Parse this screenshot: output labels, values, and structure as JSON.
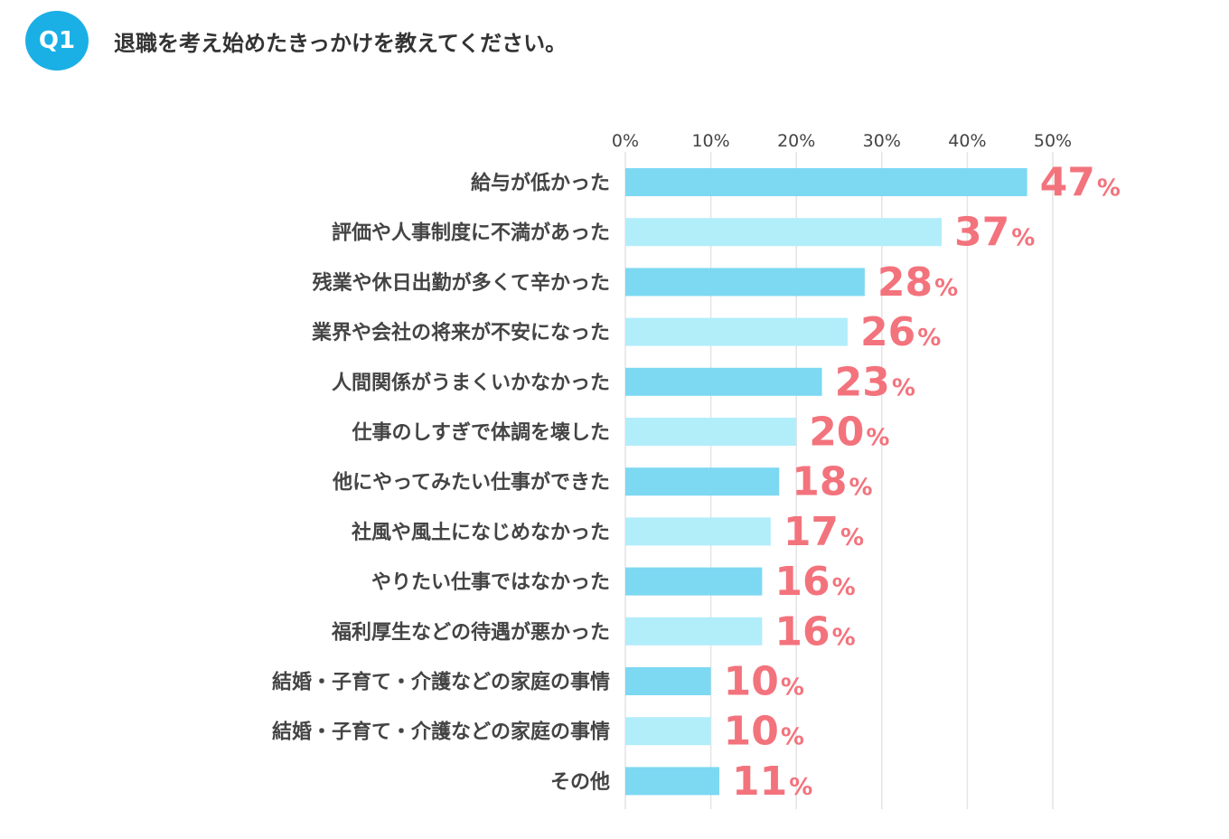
{
  "question": {
    "badge": "Q1",
    "text": "退職を考え始めたきっかけを教えてください。"
  },
  "colors": {
    "badge": "#1ab0e6",
    "bar_dark": "#7dd8f2",
    "bar_light": "#b2edfa",
    "value_label": "#f3737d",
    "grid": "#e4e4e4",
    "text": "#444444"
  },
  "chart_data": {
    "type": "bar",
    "orientation": "horizontal",
    "title": "退職を考え始めたきっかけを教えてください。",
    "xlabel": "",
    "ylabel": "",
    "xlim": [
      0,
      50
    ],
    "grid": true,
    "unit": "%",
    "ticks": [
      "0%",
      "10%",
      "20%",
      "30%",
      "40%",
      "50%"
    ],
    "tick_values": [
      0,
      10,
      20,
      30,
      40,
      50
    ],
    "categories": [
      "給与が低かった",
      "評価や人事制度に不満があった",
      "残業や休日出勤が多くて辛かった",
      "業界や会社の将来が不安になった",
      "人間関係がうまくいかなかった",
      "仕事のしすぎで体調を壊した",
      "他にやってみたい仕事ができた",
      "社風や風土になじめなかった",
      "やりたい仕事ではなかった",
      "福利厚生などの待遇が悪かった",
      "結婚・子育て・介護などの家庭の事情",
      "結婚・子育て・介護などの家庭の事情",
      "その他"
    ],
    "values": [
      47,
      37,
      28,
      26,
      23,
      20,
      18,
      17,
      16,
      16,
      10,
      10,
      11
    ],
    "value_labels": [
      "47",
      "37",
      "28",
      "26",
      "23",
      "20",
      "18",
      "17",
      "16",
      "16",
      "10",
      "10",
      "11"
    ]
  }
}
